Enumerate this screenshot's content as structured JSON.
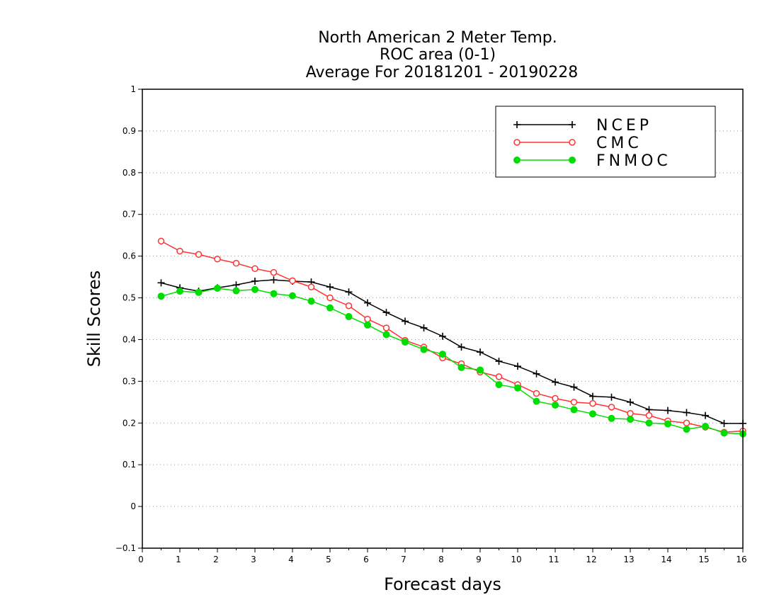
{
  "chart_data": {
    "type": "line",
    "title_lines": [
      "North American 2 Meter Temp.",
      "ROC area (0-1)",
      "Average For 20181201 - 20190228"
    ],
    "xlabel": "Forecast days",
    "ylabel": "Skill Scores",
    "xlim": [
      0,
      16
    ],
    "ylim": [
      -0.1,
      1
    ],
    "x_ticks": [
      "0",
      "1",
      "2",
      "3",
      "4",
      "5",
      "6",
      "7",
      "8",
      "9",
      "10",
      "11",
      "12",
      "13",
      "14",
      "15",
      "16"
    ],
    "y_ticks": [
      "−0.1",
      "0",
      "0.1",
      "0.2",
      "0.3",
      "0.4",
      "0.5",
      "0.6",
      "0.7",
      "0.8",
      "0.9",
      "1"
    ],
    "y_tick_values": [
      -0.1,
      0,
      0.1,
      0.2,
      0.3,
      0.4,
      0.5,
      0.6,
      0.7,
      0.8,
      0.9,
      1
    ],
    "grid": "horizontal dotted",
    "legend_position": "top-right",
    "x": [
      0.5,
      1,
      1.5,
      2,
      2.5,
      3,
      3.5,
      4,
      4.5,
      5,
      5.5,
      6,
      6.5,
      7,
      7.5,
      8,
      8.5,
      9,
      9.5,
      10,
      10.5,
      11,
      11.5,
      12,
      12.5,
      13,
      13.5,
      14,
      14.5,
      15,
      15.5,
      16
    ],
    "series": [
      {
        "name": "NCEP",
        "color": "#000000",
        "marker": "plus",
        "values": [
          0.536,
          0.524,
          0.516,
          0.524,
          0.531,
          0.54,
          0.543,
          0.54,
          0.538,
          0.526,
          0.514,
          0.488,
          0.465,
          0.444,
          0.428,
          0.408,
          0.382,
          0.37,
          0.348,
          0.336,
          0.318,
          0.298,
          0.286,
          0.264,
          0.262,
          0.25,
          0.232,
          0.23,
          0.225,
          0.218,
          0.199,
          0.199
        ]
      },
      {
        "name": "CMC",
        "color": "#ff3333",
        "marker": "open-circle",
        "values": [
          0.636,
          0.612,
          0.604,
          0.593,
          0.583,
          0.57,
          0.561,
          0.541,
          0.526,
          0.5,
          0.481,
          0.449,
          0.428,
          0.398,
          0.382,
          0.356,
          0.342,
          0.322,
          0.311,
          0.292,
          0.271,
          0.259,
          0.25,
          0.247,
          0.238,
          0.223,
          0.218,
          0.205,
          0.2,
          0.19,
          0.178,
          0.181
        ]
      },
      {
        "name": "FNMOC",
        "color": "#00dd00",
        "marker": "filled-circle",
        "values": [
          0.504,
          0.516,
          0.513,
          0.523,
          0.517,
          0.52,
          0.51,
          0.505,
          0.492,
          0.476,
          0.455,
          0.435,
          0.412,
          0.394,
          0.376,
          0.365,
          0.333,
          0.327,
          0.292,
          0.284,
          0.252,
          0.243,
          0.232,
          0.222,
          0.211,
          0.209,
          0.2,
          0.198,
          0.185,
          0.192,
          0.176,
          0.174
        ]
      }
    ]
  }
}
